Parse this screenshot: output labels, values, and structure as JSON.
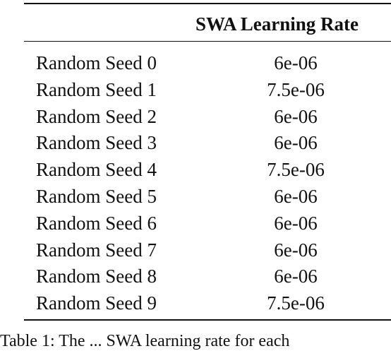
{
  "table": {
    "header": {
      "col1": "",
      "col2": "SWA Learning Rate"
    },
    "rows": [
      {
        "seed": "Random Seed 0",
        "lr": "6e-06"
      },
      {
        "seed": "Random Seed 1",
        "lr": "7.5e-06"
      },
      {
        "seed": "Random Seed 2",
        "lr": "6e-06"
      },
      {
        "seed": "Random Seed 3",
        "lr": "6e-06"
      },
      {
        "seed": "Random Seed 4",
        "lr": "7.5e-06"
      },
      {
        "seed": "Random Seed 5",
        "lr": "6e-06"
      },
      {
        "seed": "Random Seed 6",
        "lr": "6e-06"
      },
      {
        "seed": "Random Seed 7",
        "lr": "6e-06"
      },
      {
        "seed": "Random Seed 8",
        "lr": "6e-06"
      },
      {
        "seed": "Random Seed 9",
        "lr": "7.5e-06"
      }
    ]
  },
  "caption": "Table 1: The ... SWA learning rate for each"
}
